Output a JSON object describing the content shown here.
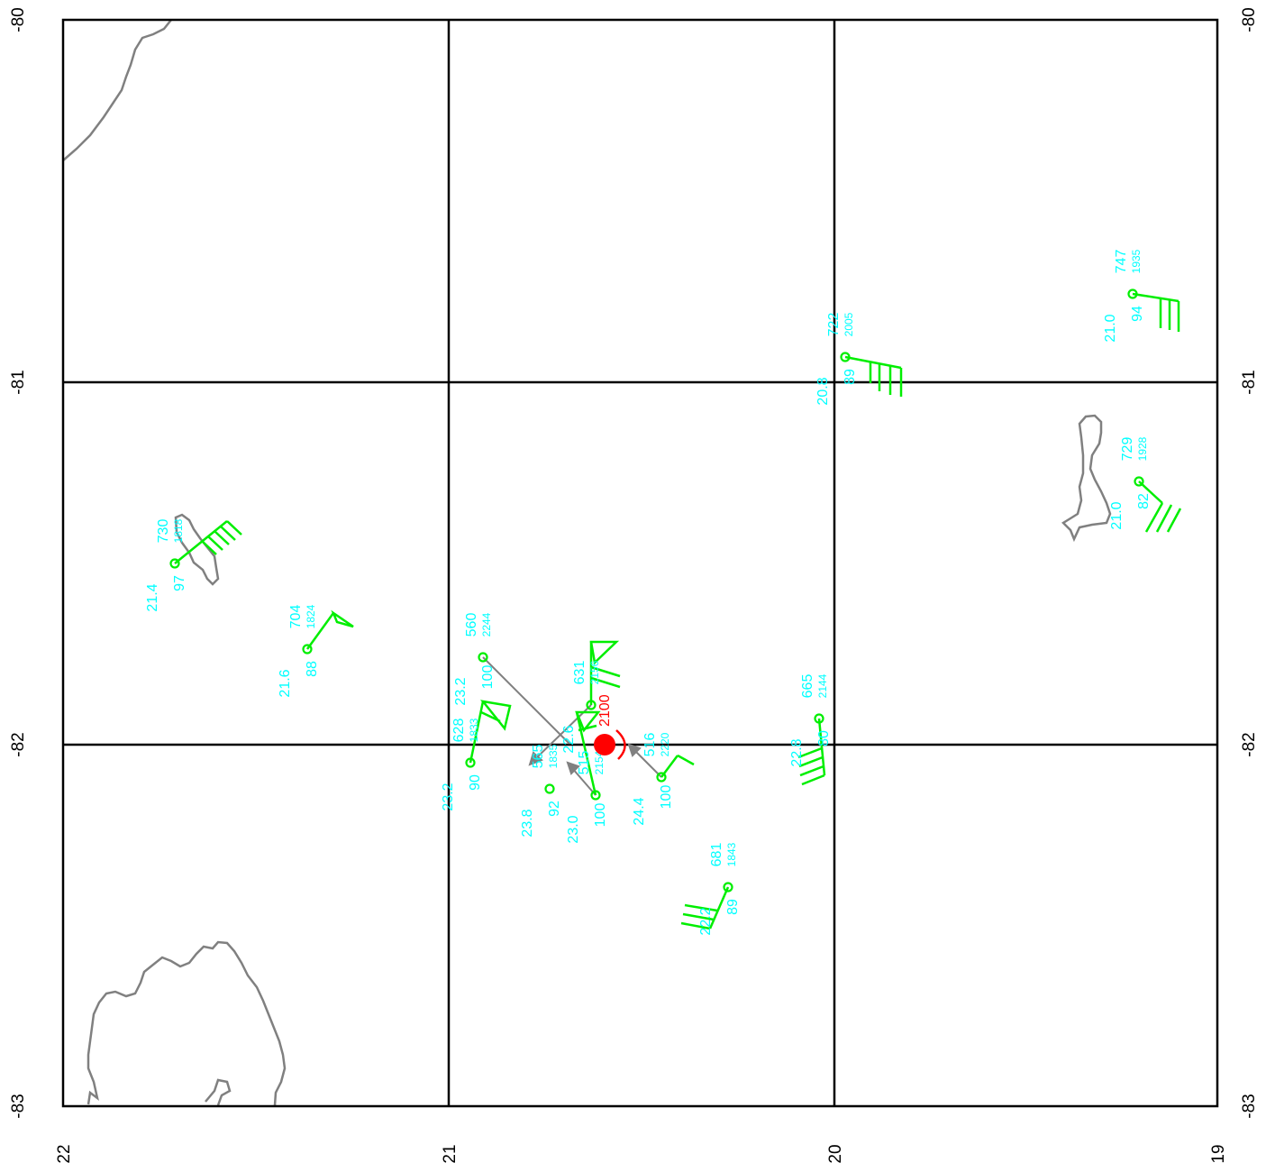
{
  "colors": {
    "background": "#ffffff",
    "grid": "#000000",
    "coastline": "#808080",
    "barb": "#00ee00",
    "label": "#00ffff",
    "vector": "#808080",
    "center": "#ff0000"
  },
  "map": {
    "lon_ticks": [
      "22",
      "21",
      "20",
      "19"
    ],
    "lat_ticks": [
      "-80",
      "-81",
      "-82",
      "-83"
    ],
    "grid": true,
    "rotation_deg": -90
  },
  "stations": [
    {
      "top": "730",
      "time": "1818",
      "temp": "21.4",
      "rh": "97"
    },
    {
      "top": "704",
      "time": "1824",
      "temp": "21.6",
      "rh": "88"
    },
    {
      "top": "560",
      "time": "2244",
      "temp": "23.2",
      "rh": "100"
    },
    {
      "top": "628",
      "time": "1833",
      "temp": "23.2",
      "rh": "90"
    },
    {
      "top": "565",
      "time": "1835",
      "temp": "23.8",
      "rh": "92"
    },
    {
      "top": "631",
      "time": "2156",
      "temp": "22.6",
      "rh": ""
    },
    {
      "top": "515",
      "time": "2154",
      "temp": "23.0",
      "rh": "100"
    },
    {
      "top": "516",
      "time": "2220",
      "temp": "24.4",
      "rh": "100"
    },
    {
      "top": "665",
      "time": "2144",
      "temp": "22.8",
      "rh": "80"
    },
    {
      "top": "681",
      "time": "1843",
      "temp": "22.2",
      "rh": "89"
    },
    {
      "top": "722",
      "time": "2005",
      "temp": "20.8",
      "rh": "89"
    },
    {
      "top": "747",
      "time": "1935",
      "temp": "21.0",
      "rh": "94"
    },
    {
      "top": "729",
      "time": "1928",
      "temp": "21.0",
      "rh": "82"
    }
  ],
  "center": {
    "label": "2100"
  }
}
